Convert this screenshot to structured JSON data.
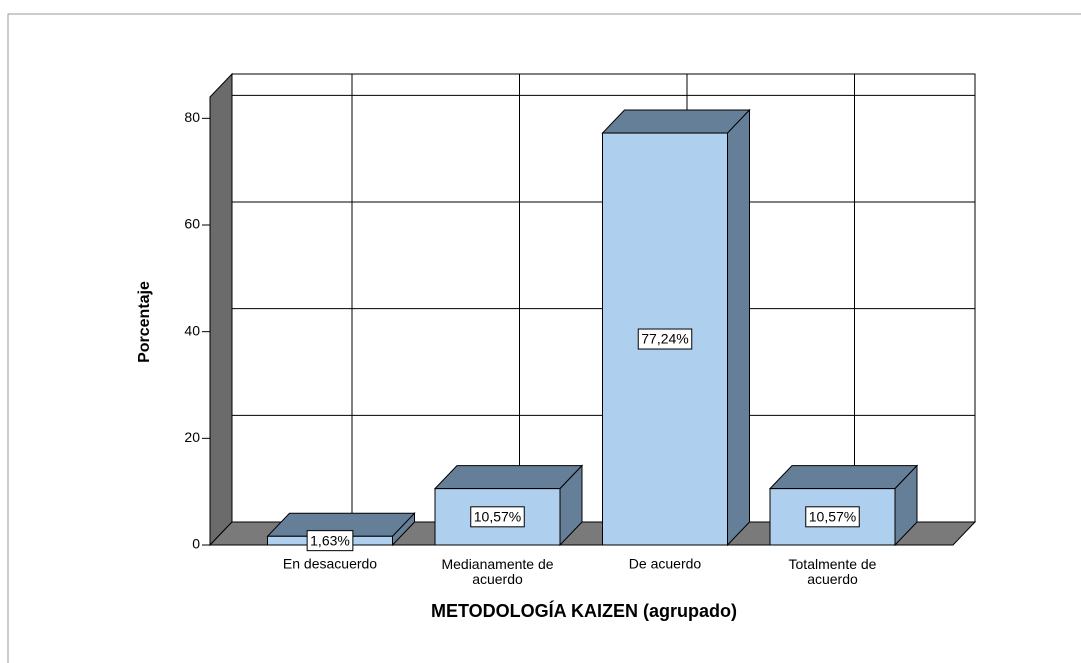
{
  "chart_data": {
    "type": "bar3d",
    "categories": [
      "En desacuerdo",
      "Medianamente de acuerdo",
      "De acuerdo",
      "Totalmente de acuerdo"
    ],
    "values": [
      1.63,
      10.57,
      77.24,
      10.57
    ],
    "value_labels": [
      "1,63%",
      "10,57%",
      "77,24%",
      "10,57%"
    ],
    "color": "#aecfee",
    "side_color": "#667f98",
    "x_label": "METODOLOGÍA KAIZEN (agrupado)",
    "y_label": "Porcentaje",
    "ylim": [
      0,
      84
    ],
    "yticks": [
      0,
      20,
      40,
      60,
      80
    ],
    "grid": true
  }
}
